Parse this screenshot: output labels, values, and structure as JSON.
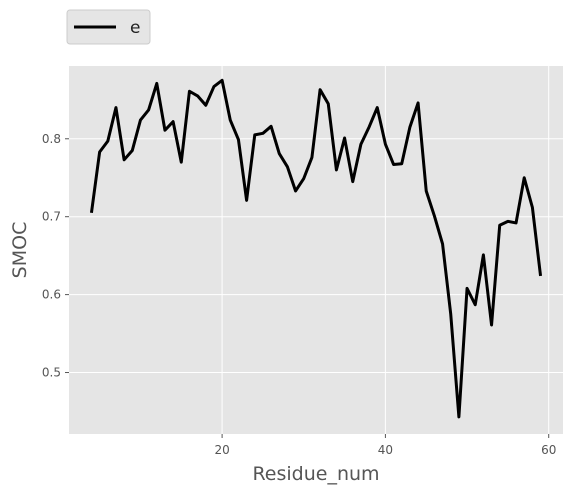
{
  "chart_data": {
    "type": "line",
    "xlabel": "Residue_num",
    "ylabel": "SMOC",
    "xlim": [
      1.25,
      61.75
    ],
    "ylim": [
      0.4211,
      0.8934
    ],
    "xticks": [
      20,
      40,
      60
    ],
    "yticks": [
      0.5,
      0.6,
      0.7,
      0.8
    ],
    "grid": true,
    "legend": {
      "location": "above-left",
      "entries": [
        "e"
      ]
    },
    "series": [
      {
        "name": "e",
        "color": "#000000",
        "x": [
          4,
          5,
          6,
          7,
          8,
          9,
          10,
          11,
          12,
          13,
          14,
          15,
          16,
          17,
          18,
          19,
          20,
          21,
          22,
          23,
          24,
          25,
          26,
          27,
          28,
          29,
          30,
          31,
          32,
          33,
          34,
          35,
          36,
          37,
          38,
          39,
          40,
          41,
          42,
          43,
          44,
          45,
          46,
          47,
          48,
          49,
          50,
          51,
          52,
          53,
          54,
          55,
          56,
          57,
          58,
          59
        ],
        "y": [
          0.705,
          0.783,
          0.797,
          0.84,
          0.773,
          0.785,
          0.824,
          0.837,
          0.871,
          0.811,
          0.822,
          0.77,
          0.861,
          0.855,
          0.843,
          0.867,
          0.875,
          0.824,
          0.799,
          0.721,
          0.805,
          0.807,
          0.816,
          0.781,
          0.764,
          0.733,
          0.749,
          0.776,
          0.863,
          0.845,
          0.76,
          0.801,
          0.745,
          0.793,
          0.815,
          0.84,
          0.793,
          0.767,
          0.768,
          0.815,
          0.846,
          0.733,
          0.701,
          0.665,
          0.575,
          0.443,
          0.608,
          0.587,
          0.651,
          0.561,
          0.689,
          0.694,
          0.692,
          0.75,
          0.712,
          0.624
        ]
      }
    ]
  }
}
